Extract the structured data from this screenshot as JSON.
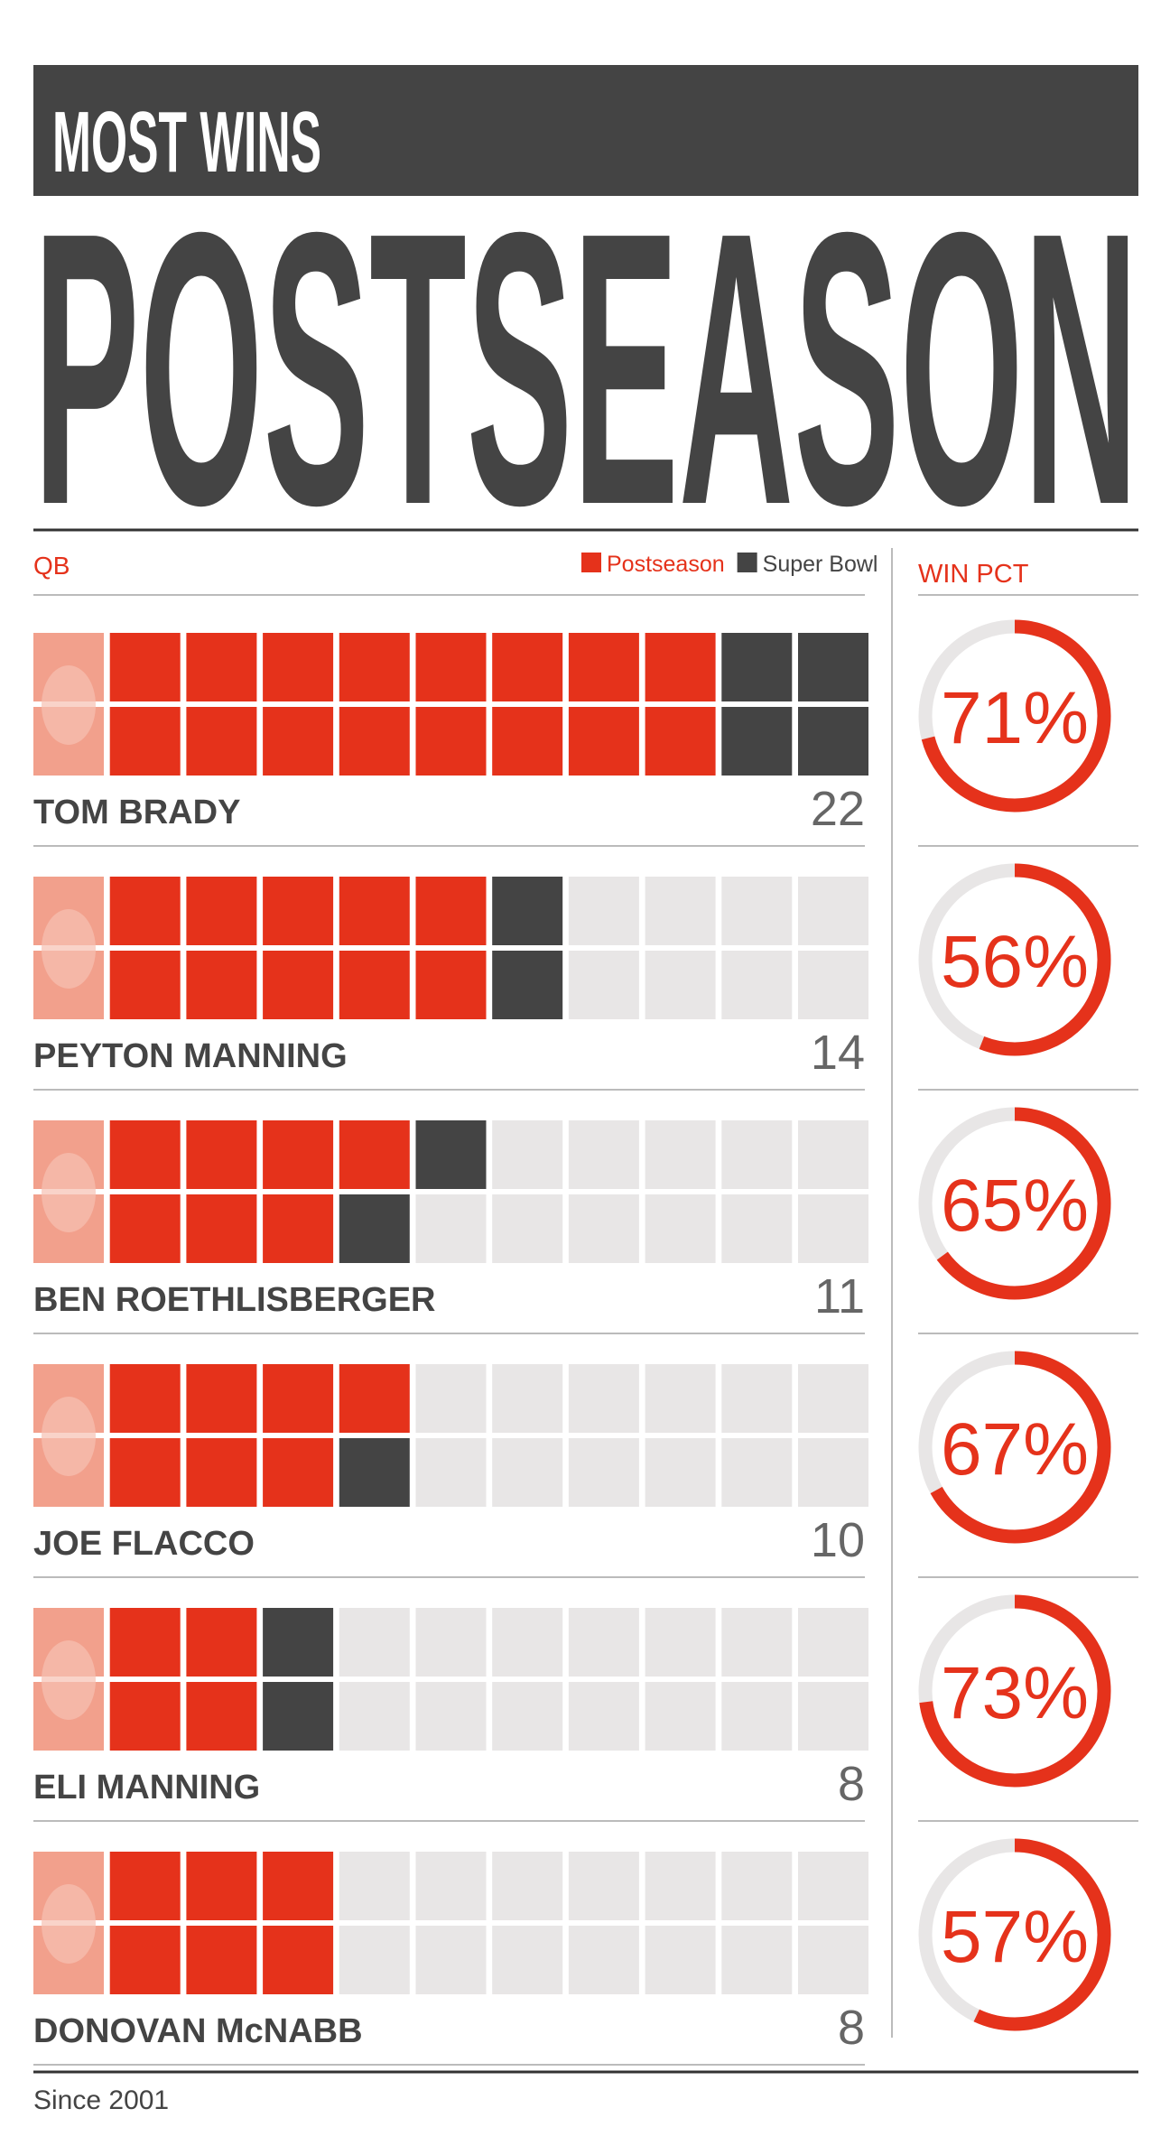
{
  "chart_data": {
    "type": "waffle",
    "title": "MOST WINS",
    "subtitle": "POSTSEASON",
    "axis_label": "QB",
    "categories": [
      "TOM BRADY",
      "PEYTON MANNING",
      "BEN ROETHLISBERGER",
      "JOE FLACCO",
      "ELI MANNING",
      "DONOVAN McNABB"
    ],
    "series": [
      {
        "name": "Postseason",
        "color": "#e5321b",
        "values": [
          18,
          12,
          9,
          9,
          6,
          8
        ]
      },
      {
        "name": "Super Bowl",
        "color": "#444444",
        "values": [
          4,
          2,
          2,
          1,
          2,
          0
        ]
      }
    ],
    "totals": [
      22,
      14,
      11,
      10,
      8,
      8
    ],
    "win_pct_title": "WIN PCT",
    "win_pct": [
      71,
      56,
      65,
      67,
      73,
      57
    ],
    "win_pct_labels": [
      "71%",
      "56%",
      "65%",
      "67%",
      "73%",
      "57%"
    ],
    "note": "Since 2001"
  }
}
